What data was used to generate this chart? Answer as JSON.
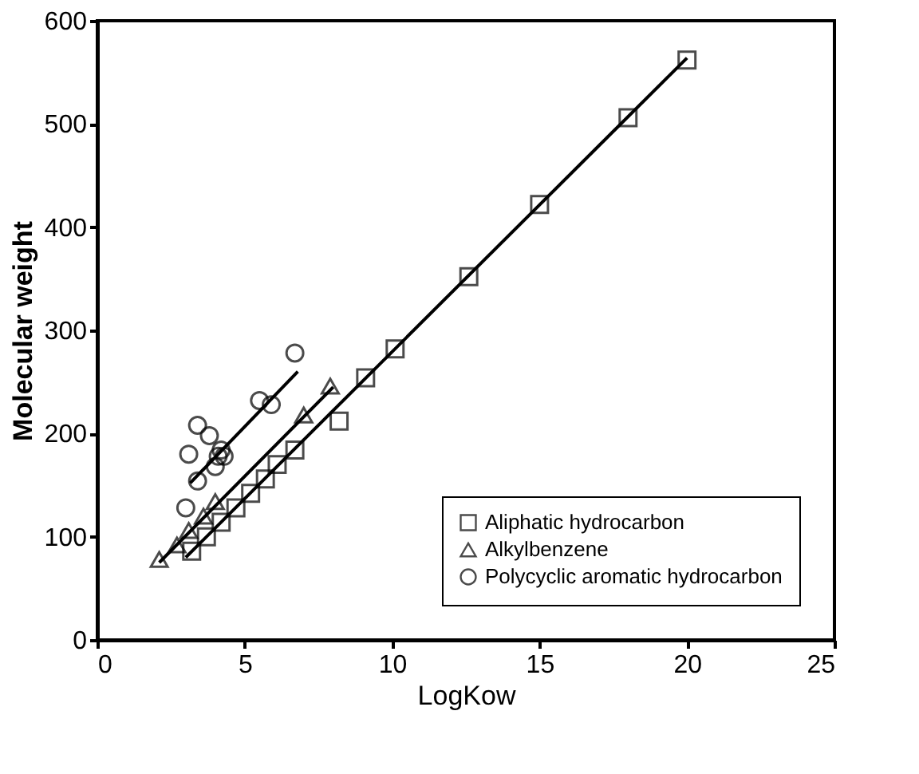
{
  "chart_data": {
    "type": "scatter",
    "xlabel": "LogKow",
    "ylabel": "Molecular weight",
    "xlim": [
      0,
      25
    ],
    "xticks": [
      0,
      5,
      10,
      15,
      20,
      25
    ],
    "ylim": [
      0,
      600
    ],
    "yticks": [
      0,
      100,
      200,
      300,
      400,
      500,
      600
    ],
    "grid": false,
    "legend": "bottom right",
    "series": [
      {
        "name": "Aliphatic hydrocarbon",
        "marker": "square",
        "color": "#000000",
        "x": [
          3.2,
          3.7,
          4.2,
          4.7,
          5.2,
          5.7,
          6.1,
          6.7,
          8.2,
          9.1,
          10.1,
          12.6,
          15.0,
          18.0,
          20.0
        ],
        "values": [
          86,
          100,
          114,
          128,
          142,
          156,
          170,
          184,
          212,
          254,
          282,
          352,
          422,
          506,
          562
        ]
      },
      {
        "name": "Alkylbenzene",
        "marker": "triangle",
        "color": "#000000",
        "x": [
          2.1,
          2.7,
          3.1,
          3.6,
          4.0,
          7.0,
          7.9
        ],
        "values": [
          78,
          92,
          106,
          120,
          134,
          218,
          246
        ]
      },
      {
        "name": "Polycyclic aromatic hydrocarbon",
        "marker": "circle",
        "color": "#000000",
        "x": [
          3.0,
          3.1,
          3.4,
          3.4,
          3.8,
          4.0,
          4.1,
          4.2,
          4.3,
          5.5,
          5.9,
          6.7
        ],
        "values": [
          128,
          180,
          154,
          208,
          198,
          168,
          178,
          184,
          178,
          232,
          228,
          278
        ]
      },
      {
        "type": "line",
        "color": "#000000",
        "x": [
          3.0,
          20.0
        ],
        "values": [
          80,
          564
        ]
      },
      {
        "type": "line",
        "color": "#000000",
        "x": [
          2.1,
          8.0
        ],
        "values": [
          75,
          245
        ]
      },
      {
        "type": "line",
        "color": "#000000",
        "x": [
          3.15,
          6.8
        ],
        "values": [
          152,
          260
        ]
      }
    ]
  }
}
